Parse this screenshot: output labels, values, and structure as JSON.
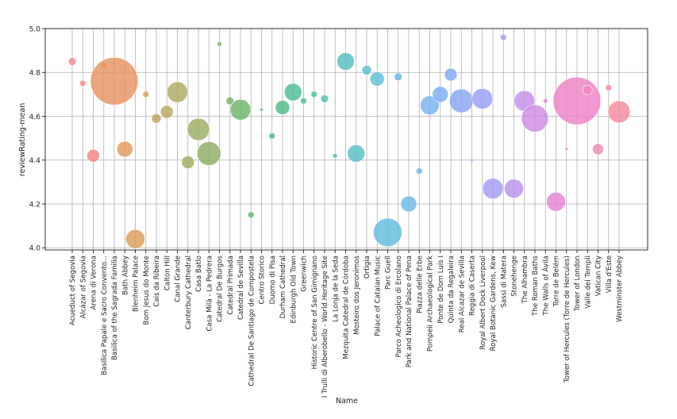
{
  "chart_data": {
    "type": "scatter",
    "title": "",
    "xlabel": "Name",
    "ylabel": "reviewRating-mean",
    "ylim": [
      3.99,
      5.0
    ],
    "yticks": [
      4.0,
      4.2,
      4.4,
      4.6,
      4.8,
      5.0
    ],
    "ytick_labels": [
      "4.0",
      "4.2",
      "4.4",
      "4.6",
      "4.8",
      "5.0"
    ],
    "grid": true,
    "legend": "none",
    "size_encoding": "bubble area varies per point",
    "categories": [
      "Acueduct of Segovia",
      "Alcázar of Segovia",
      "Arena di Verona",
      "Basilica Papale e Sacro Convento...",
      "Basilica of the Sagrada Familia",
      "Bath Abbey",
      "Blenheim Palace",
      "Bom Jesus do Monte",
      "Cais da Ribeira",
      "Calton Hill",
      "Canal Grande",
      "Canterbury Cathedral",
      "Casa Batlo",
      "Casa Milà - La Pedrera",
      "Catedral De Burgos",
      "Catedral Primada",
      "Catedral de Sevilla",
      "Cathedral De Santiago de Compostela",
      "Centro Storico",
      "Duomo di Pisa",
      "Durham Cathedral",
      "Edinburgh Old Town",
      "Greenwich",
      "Historic Centre of San Gimignano",
      "I Trulli di Alberobello - World Heritage Site",
      "La Lonja de la Seda",
      "Mezquita Catedral de Córdoba",
      "Mosteiro dos Jeronimos",
      "Ortigia",
      "Palace of Catalan Music",
      "Parc Guell",
      "Parco Acheologico di Ercolano",
      "Park and National Palace of Pena",
      "Piazza delle Erbe",
      "Pompeii Archaeological Park",
      "Ponte de Dom Luís I",
      "Quinta da Regaleira",
      "Real Alcazar de Sevilla",
      "Reggia di Caserta",
      "Royal Albert Dock Liverpool",
      "Royal Botanic Gardens, Kew",
      "Sassi di Matera",
      "Stonehenge",
      "The Alhambra",
      "The Roman Baths",
      "The Walls of Ávila",
      "Torre de Belém",
      "Tower of Hercules (Torre de Hercules)",
      "Tower of London",
      "Valle dei Templi",
      "Vatican City",
      "Villa d'Este",
      "Westminster Abbey"
    ],
    "series": [
      {
        "values": [
          4.85,
          4.75,
          4.42,
          4.83,
          4.76,
          4.45,
          4.04,
          4.7,
          4.59,
          4.62,
          4.71,
          4.39,
          4.54,
          4.43,
          4.93,
          4.67,
          4.63,
          4.15,
          4.63,
          4.51,
          4.64,
          4.71,
          4.67,
          4.7,
          4.68,
          4.42,
          4.85,
          4.43,
          4.81,
          4.77,
          4.07,
          4.78,
          4.2,
          4.35,
          4.65,
          4.7,
          4.79,
          4.67,
          4.4,
          4.68,
          4.27,
          4.96,
          4.27,
          4.67,
          4.59,
          4.67,
          4.21,
          4.45,
          4.67,
          4.72,
          4.45,
          4.73,
          4.62
        ],
        "sizes": [
          5,
          4,
          8,
          4,
          30,
          10,
          12,
          4,
          6,
          8,
          13,
          8,
          14,
          15,
          3,
          5,
          13,
          4,
          2,
          4,
          9,
          11,
          4,
          4,
          5,
          3,
          11,
          11,
          6,
          9,
          18,
          5,
          10,
          4,
          12,
          10,
          8,
          15,
          2,
          13,
          13,
          4,
          12,
          13,
          17,
          3,
          12,
          2,
          30,
          6,
          7,
          4,
          14
        ],
        "colors": [
          "#f28b92",
          "#f28b8c",
          "#f08480",
          "#ec8a68",
          "#e8925e",
          "#e2975a",
          "#d89b57",
          "#ccA159",
          "#c4a45c",
          "#b9a75d",
          "#aea95f",
          "#a4aa62",
          "#99ad63",
          "#8eaf63",
          "#82b165",
          "#77b365",
          "#6bb668",
          "#62b86d",
          "#58ba73",
          "#52bb7d",
          "#4fbc88",
          "#4cbd92",
          "#4dbe9c",
          "#4ebfa5",
          "#50c0ae",
          "#52c0b7",
          "#55c0bf",
          "#58bfc7",
          "#5bbfcf",
          "#5fbed7",
          "#63bcdd",
          "#67bae3",
          "#6bb8e8",
          "#70b5ec",
          "#75b2ef",
          "#7aaef1",
          "#80aaf2",
          "#86a6f3",
          "#8ea2f3",
          "#979ff2",
          "#a19bf1",
          "#ac97ef",
          "#b893ec",
          "#c48fe8",
          "#d08be3",
          "#db87dd",
          "#e484d5",
          "#ea82cd",
          "#ee83c4",
          "#f085ba",
          "#f287b0",
          "#f389a6",
          "#f38b9d"
        ]
      }
    ]
  }
}
